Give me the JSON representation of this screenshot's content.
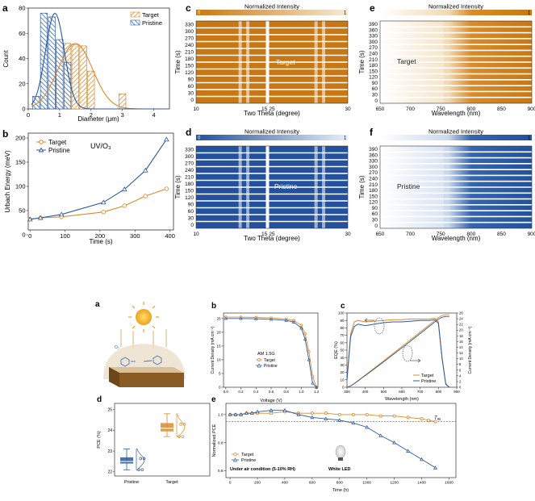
{
  "colors": {
    "target": "#D98B2B",
    "pristine": "#2C5AA0",
    "grid": "#9a9a9a"
  },
  "top": {
    "a": {
      "letter": "a",
      "xlabel": "Diameter (μm)",
      "ylabel": "Count",
      "legend": [
        "Target",
        "Pristine"
      ],
      "xticks": [
        "0",
        "1",
        "2",
        "3",
        "4"
      ],
      "yticks": [
        "0",
        "20",
        "40",
        "60",
        "80"
      ]
    },
    "b": {
      "letter": "b",
      "xlabel": "Time (s)",
      "ylabel": "Urbach Energy (meV)",
      "legend": [
        "Target",
        "Pristine"
      ],
      "annotation": "UV/O₃",
      "xticks": [
        "0",
        "100",
        "200",
        "300",
        "400"
      ],
      "yticks": [
        "0",
        "50",
        "100",
        "150",
        "200"
      ]
    },
    "c": {
      "letter": "c",
      "title": "Normalized Intensity",
      "cb_min": "0",
      "cb_max": "1",
      "ylabel": "Time (s)",
      "xlabel": "Two Theta (degree)",
      "tag": "Target",
      "yticks": [
        "330",
        "300",
        "270",
        "240",
        "210",
        "180",
        "150",
        "120",
        "90",
        "60",
        "30",
        "0"
      ],
      "xticks": [
        "10",
        "15",
        "25",
        "30"
      ]
    },
    "d": {
      "letter": "d",
      "title": "Normalized Intensity",
      "cb_min": "0",
      "cb_max": "1",
      "ylabel": "Time (s)",
      "xlabel": "Two Theta (degree)",
      "tag": "Pristine",
      "yticks": [
        "330",
        "300",
        "270",
        "240",
        "210",
        "180",
        "150",
        "120",
        "90",
        "60",
        "30",
        "0"
      ],
      "xticks": [
        "10",
        "15",
        "25",
        "30"
      ]
    },
    "e": {
      "letter": "e",
      "title": "Normalized Intensity",
      "cb_min": "0",
      "cb_max": "1",
      "ylabel": "Time (s)",
      "xlabel": "Wavelength (nm)",
      "tag": "Target",
      "yticks": [
        "390",
        "360",
        "330",
        "300",
        "270",
        "240",
        "210",
        "180",
        "150",
        "120",
        "90",
        "60",
        "30",
        "0"
      ],
      "xticks": [
        "650",
        "700",
        "750",
        "800",
        "850",
        "900"
      ]
    },
    "f": {
      "letter": "f",
      "title": "Normalized Intensity",
      "cb_min": "0",
      "cb_max": "1",
      "ylabel": "Time (s)",
      "xlabel": "Wavelength (nm)",
      "tag": "Pristine",
      "yticks": [
        "390",
        "360",
        "330",
        "300",
        "270",
        "240",
        "210",
        "180",
        "150",
        "120",
        "90",
        "60",
        "30",
        "0"
      ],
      "xticks": [
        "650",
        "700",
        "750",
        "800",
        "850",
        "900"
      ]
    }
  },
  "bottom": {
    "a": {
      "letter": "a",
      "o2": "O₂"
    },
    "b": {
      "letter": "b",
      "xlabel": "Voltage (V)",
      "ylabel": "Current Density (mA cm⁻²)",
      "note": "AM 1.5G",
      "legend": [
        "Target",
        "Pristine"
      ],
      "xticks": [
        "0.0",
        "0.2",
        "0.4",
        "0.6",
        "0.8",
        "1.0",
        "1.2"
      ],
      "yticks": [
        "0",
        "5",
        "10",
        "15",
        "20",
        "25"
      ]
    },
    "c": {
      "letter": "c",
      "xlabel": "Wavelength (nm)",
      "ylabel": "EQE (%)",
      "ylabel2": "Current Density (mA cm⁻²)",
      "legend": [
        "Target",
        "Pristine"
      ],
      "xticks": [
        "300",
        "400",
        "500",
        "600",
        "700",
        "800",
        "900"
      ],
      "yticks": [
        "0",
        "10",
        "20",
        "30",
        "40",
        "50",
        "60",
        "70",
        "80",
        "90",
        "100"
      ],
      "y2ticks": [
        "0",
        "2",
        "4",
        "6",
        "8",
        "10",
        "12",
        "14",
        "16",
        "18",
        "20",
        "22",
        "24",
        "26"
      ]
    },
    "d": {
      "letter": "d",
      "ylabel": "PCE (%)",
      "categories": [
        "Pristine",
        "Target"
      ],
      "yticks": [
        "22",
        "23",
        "24",
        "25"
      ]
    },
    "e": {
      "letter": "e",
      "xlabel": "Time (h)",
      "ylabel": "Normalized PCE",
      "legend": [
        "Target",
        "Pristine"
      ],
      "note": "Under air condition (5-10% RH)",
      "led": "White LED",
      "t95": "T₉₅",
      "xticks": [
        "0",
        "200",
        "400",
        "600",
        "800",
        "1000",
        "1200",
        "1400",
        "1600"
      ],
      "yticks": [
        "0.6",
        "0.8",
        "1.0"
      ]
    }
  },
  "chart_data": [
    {
      "type": "bar",
      "panel": "top-a",
      "title": "",
      "xlabel": "Diameter (μm)",
      "ylabel": "Count",
      "xlim": [
        0,
        4.5
      ],
      "ylim": [
        0,
        80
      ],
      "series": [
        {
          "name": "Target",
          "x": [
            0.75,
            1.0,
            1.25,
            1.5,
            1.75,
            2.0,
            3.0
          ],
          "values": [
            29,
            51,
            52,
            51,
            50,
            30,
            12
          ]
        },
        {
          "name": "Pristine",
          "x": [
            0.25,
            0.5,
            0.75,
            1.0,
            1.25
          ],
          "values": [
            10,
            76,
            73,
            55,
            37
          ]
        }
      ]
    },
    {
      "type": "line",
      "panel": "top-b",
      "title": "",
      "xlabel": "Time (s)",
      "ylabel": "Urbach Energy (meV)",
      "xlim": [
        0,
        400
      ],
      "ylim": [
        0,
        200
      ],
      "x": [
        0,
        30,
        90,
        210,
        270,
        330,
        390
      ],
      "series": [
        {
          "name": "Target",
          "values": [
            32,
            35,
            37,
            47,
            60,
            80,
            95
          ]
        },
        {
          "name": "Pristine",
          "values": [
            32,
            35,
            42,
            67,
            94,
            133,
            197
          ]
        }
      ]
    },
    {
      "type": "line",
      "panel": "bottom-b",
      "title": "",
      "xlabel": "Voltage (V)",
      "ylabel": "Current Density (mA cm⁻²)",
      "xlim": [
        0,
        1.2
      ],
      "ylim": [
        0,
        26
      ],
      "x": [
        0,
        0.2,
        0.4,
        0.6,
        0.8,
        0.9,
        1.0,
        1.05,
        1.1,
        1.15,
        1.2
      ],
      "series": [
        {
          "name": "Target",
          "values": [
            25.5,
            25.5,
            25.4,
            25.2,
            24.8,
            24.3,
            22.5,
            19.5,
            13,
            4,
            0
          ]
        },
        {
          "name": "Pristine",
          "values": [
            25.0,
            25.0,
            24.9,
            24.7,
            24.3,
            23.7,
            21.5,
            17.5,
            10,
            1.5,
            0
          ]
        }
      ]
    },
    {
      "type": "line",
      "panel": "bottom-c",
      "title": "",
      "xlabel": "Wavelength (nm)",
      "ylabel": "EQE (%)",
      "xlim": [
        300,
        900
      ],
      "ylim": [
        0,
        100
      ],
      "x": [
        300,
        320,
        340,
        360,
        380,
        400,
        450,
        500,
        550,
        600,
        650,
        700,
        750,
        780,
        800,
        820,
        840,
        860
      ],
      "series": [
        {
          "name": "Target EQE",
          "values": [
            10,
            72,
            88,
            90,
            89,
            88,
            89,
            90,
            91,
            91,
            92,
            92,
            92,
            93,
            88,
            40,
            5,
            0
          ]
        },
        {
          "name": "Pristine EQE",
          "values": [
            10,
            68,
            82,
            85,
            84,
            83,
            85,
            87,
            88,
            88,
            89,
            90,
            90,
            91,
            86,
            38,
            4,
            0
          ]
        }
      ]
    },
    {
      "type": "box",
      "panel": "bottom-d",
      "ylabel": "PCE (%)",
      "categories": [
        "Pristine",
        "Target"
      ],
      "series": [
        {
          "name": "Pristine",
          "min": 22.1,
          "q1": 22.4,
          "median": 22.5,
          "q3": 22.7,
          "max": 23.1
        },
        {
          "name": "Target",
          "min": 23.7,
          "q1": 23.95,
          "median": 24.1,
          "q3": 24.35,
          "max": 24.8
        }
      ]
    },
    {
      "type": "line",
      "panel": "bottom-e",
      "title": "",
      "xlabel": "Time (h)",
      "ylabel": "Normalized PCE",
      "xlim": [
        0,
        1600
      ],
      "ylim": [
        0.55,
        1.05
      ],
      "series": [
        {
          "name": "Target",
          "x": [
            0,
            40,
            80,
            120,
            160,
            200,
            300,
            400,
            500,
            600,
            700,
            800,
            900,
            1000,
            1100,
            1200,
            1300,
            1400,
            1450,
            1500
          ],
          "values": [
            1.0,
            1.0,
            1.0,
            1.01,
            1.01,
            1.01,
            1.01,
            1.02,
            1.01,
            1.01,
            1.01,
            1.0,
            1.0,
            1.0,
            0.99,
            0.99,
            0.98,
            0.97,
            0.96,
            0.95
          ]
        },
        {
          "name": "Pristine",
          "x": [
            0,
            40,
            80,
            120,
            160,
            200,
            300,
            400,
            500,
            600,
            700,
            800,
            900,
            1000,
            1100,
            1200,
            1300,
            1400,
            1500
          ],
          "values": [
            1.0,
            1.0,
            1.0,
            1.01,
            1.01,
            1.02,
            1.03,
            1.03,
            1.0,
            0.98,
            0.97,
            0.96,
            0.94,
            0.91,
            0.85,
            0.8,
            0.74,
            0.68,
            0.62
          ]
        }
      ]
    }
  ]
}
